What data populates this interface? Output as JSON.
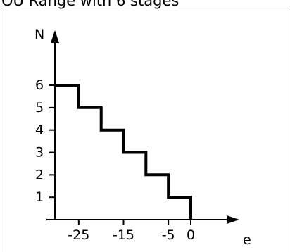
{
  "header": {
    "title": "OU Range with 6 stages"
  },
  "chart_data": {
    "type": "line",
    "title": "OU Range with 6 stages",
    "xlabel": "e",
    "ylabel": "N",
    "x_tick_labels": [
      "-25",
      "-15",
      "-5",
      "0"
    ],
    "y_tick_labels": [
      "1",
      "2",
      "3",
      "4",
      "5",
      "6"
    ],
    "series": [
      {
        "points": [
          [
            -30,
            6
          ],
          [
            -25,
            6
          ],
          [
            -25,
            5
          ],
          [
            -20,
            5
          ],
          [
            -20,
            4
          ],
          [
            -15,
            4
          ],
          [
            -15,
            3
          ],
          [
            -10,
            3
          ],
          [
            -10,
            2
          ],
          [
            -5,
            2
          ],
          [
            -5,
            1
          ],
          [
            0,
            1
          ],
          [
            0,
            0
          ]
        ]
      }
    ],
    "xlim": [
      -30,
      0
    ],
    "ylim": [
      0,
      6
    ],
    "grid": false
  }
}
